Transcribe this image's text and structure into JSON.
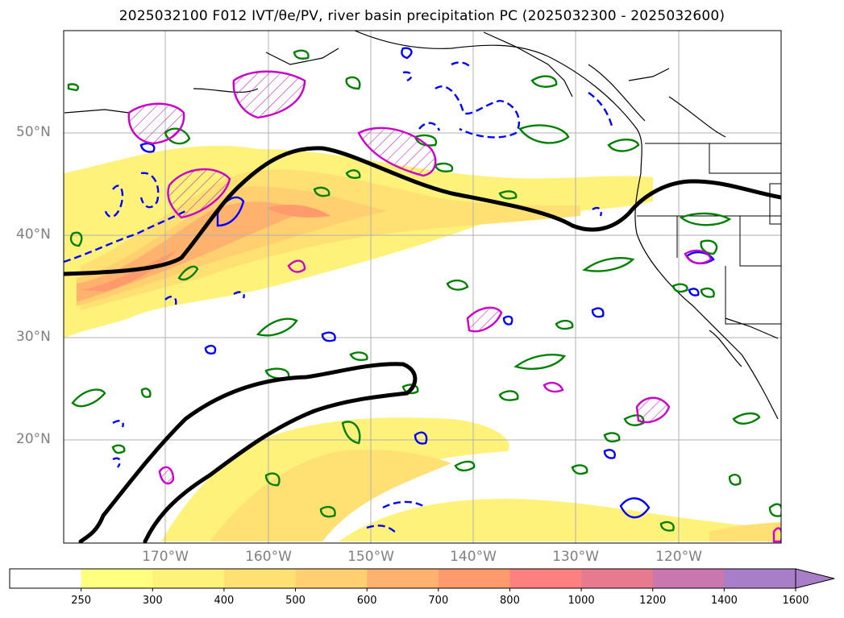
{
  "title": "2025032100 F012 IVT/θe/PV, river basin precipitation PC (2025032300 - 2025032600)",
  "latitude_labels": [
    "50°N",
    "40°N",
    "30°N",
    "20°N"
  ],
  "longitude_labels": [
    "170°W",
    "160°W",
    "150°W",
    "140°W",
    "130°W",
    "120°W"
  ],
  "colorbar": {
    "ticks": [
      "250",
      "300",
      "400",
      "500",
      "600",
      "700",
      "800",
      "1000",
      "1200",
      "1400",
      "1600"
    ],
    "colors": [
      "#ffffff",
      "#ffff80",
      "#fff27a",
      "#ffe173",
      "#ffcf70",
      "#ffb26e",
      "#ff9a6c",
      "#ff8080",
      "#e87a8f",
      "#c878ae",
      "#a87ec8"
    ],
    "extend": "max"
  },
  "colors": {
    "ivt_low": "#fff27a",
    "ivt_mid": "#ffd76f",
    "ivt_high": "#ff9a6c",
    "ivt_core": "#f47f76",
    "pv_contour": "#000000",
    "theta_e_contour": "#008000",
    "negative_contour": "#0000ff",
    "positive_contour": "#cc00cc",
    "grid": "#b0b0b0"
  }
}
